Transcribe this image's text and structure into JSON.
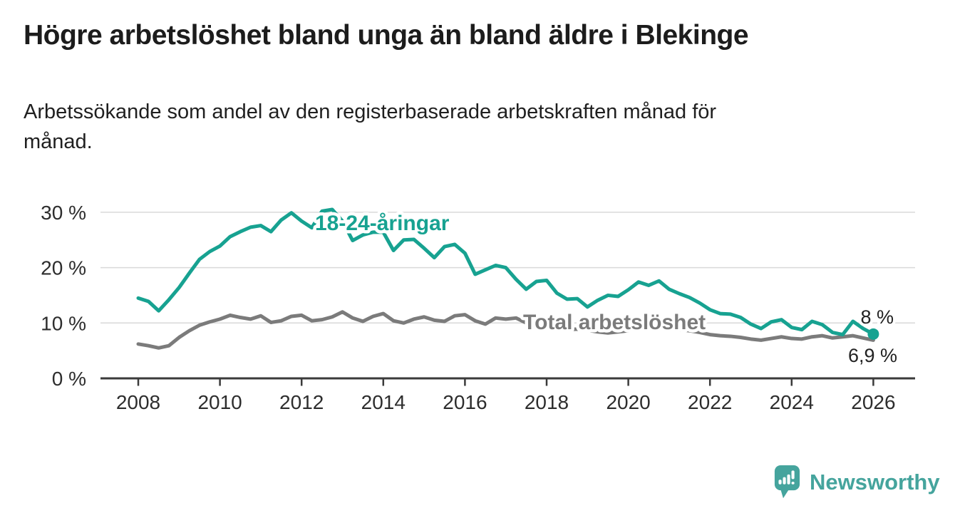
{
  "header": {
    "title": "Högre arbetslöshet bland unga än bland äldre i Blekinge",
    "subtitle_line1": "Arbetssökande som andel av den registerbaserade arbetskraften månad för",
    "subtitle_line2": "månad."
  },
  "chart_data": {
    "type": "line",
    "title": "Högre arbetslöshet bland unga än bland äldre i Blekinge",
    "subtitle": "Arbetssökande som andel av den registerbaserade arbetskraften månad för månad.",
    "x_ticks": [
      2008,
      2010,
      2012,
      2014,
      2016,
      2018,
      2020,
      2022,
      2024,
      2026
    ],
    "y_ticks": [
      {
        "value": 0,
        "label": "0 %"
      },
      {
        "value": 10,
        "label": "10 %"
      },
      {
        "value": 20,
        "label": "20 %"
      },
      {
        "value": 30,
        "label": "30 %"
      }
    ],
    "ylim": [
      0,
      32
    ],
    "xlim": [
      2007.1,
      2027.1
    ],
    "grid": "horizontal",
    "legend": "inline-labels",
    "colors": {
      "grid": "#d9d9d9",
      "axis": "#3a3a3a",
      "tick_text": "#2d2d2d",
      "end_label_text": "#222222"
    },
    "x_start": 2008,
    "x_step": 0.25,
    "series": [
      {
        "name": "18-24-åringar",
        "color": "#17a291",
        "end_label": "8 %",
        "end_dot": true,
        "values": [
          14.5,
          13.9,
          12.2,
          14.2,
          16.4,
          19.0,
          21.5,
          22.9,
          23.9,
          25.6,
          26.5,
          27.3,
          27.6,
          26.5,
          28.6,
          29.9,
          28.4,
          27.2,
          30.2,
          30.5,
          28.4,
          24.9,
          25.9,
          26.4,
          26.4,
          23.1,
          25.0,
          25.1,
          23.5,
          21.8,
          23.8,
          24.2,
          22.6,
          18.8,
          19.6,
          20.4,
          20.0,
          17.9,
          16.1,
          17.5,
          17.7,
          15.4,
          14.3,
          14.4,
          12.9,
          14.1,
          15.0,
          14.8,
          16.0,
          17.4,
          16.8,
          17.6,
          16.1,
          15.3,
          14.6,
          13.6,
          12.4,
          11.7,
          11.6,
          11.0,
          9.8,
          9.0,
          10.2,
          10.6,
          9.2,
          8.8,
          10.3,
          9.7,
          8.3,
          7.9,
          10.3,
          9.0,
          8.0
        ]
      },
      {
        "name": "Total arbetslöshet",
        "color": "#7b7b7b",
        "end_label": "6,9 %",
        "end_dot": false,
        "values": [
          6.2,
          5.9,
          5.5,
          5.9,
          7.4,
          8.6,
          9.6,
          10.2,
          10.7,
          11.4,
          11.0,
          10.7,
          11.3,
          10.1,
          10.4,
          11.2,
          11.4,
          10.4,
          10.6,
          11.1,
          12.0,
          10.9,
          10.3,
          11.2,
          11.7,
          10.4,
          10.0,
          10.7,
          11.1,
          10.5,
          10.3,
          11.3,
          11.5,
          10.4,
          9.8,
          10.9,
          10.7,
          10.9,
          10.0,
          9.6,
          9.3,
          9.0,
          8.8,
          8.9,
          8.7,
          8.4,
          8.2,
          8.4,
          8.6,
          9.4,
          9.6,
          9.3,
          9.0,
          8.8,
          8.6,
          8.3,
          7.9,
          7.7,
          7.6,
          7.4,
          7.1,
          6.9,
          7.2,
          7.5,
          7.2,
          7.1,
          7.5,
          7.7,
          7.3,
          7.5,
          7.7,
          7.3,
          6.9
        ]
      }
    ]
  },
  "branding": {
    "logo_text": "Newsworthy",
    "logo_color": "#45a49d",
    "logo_icon": "speech-bubble-bar-chart-exclamation-icon"
  }
}
